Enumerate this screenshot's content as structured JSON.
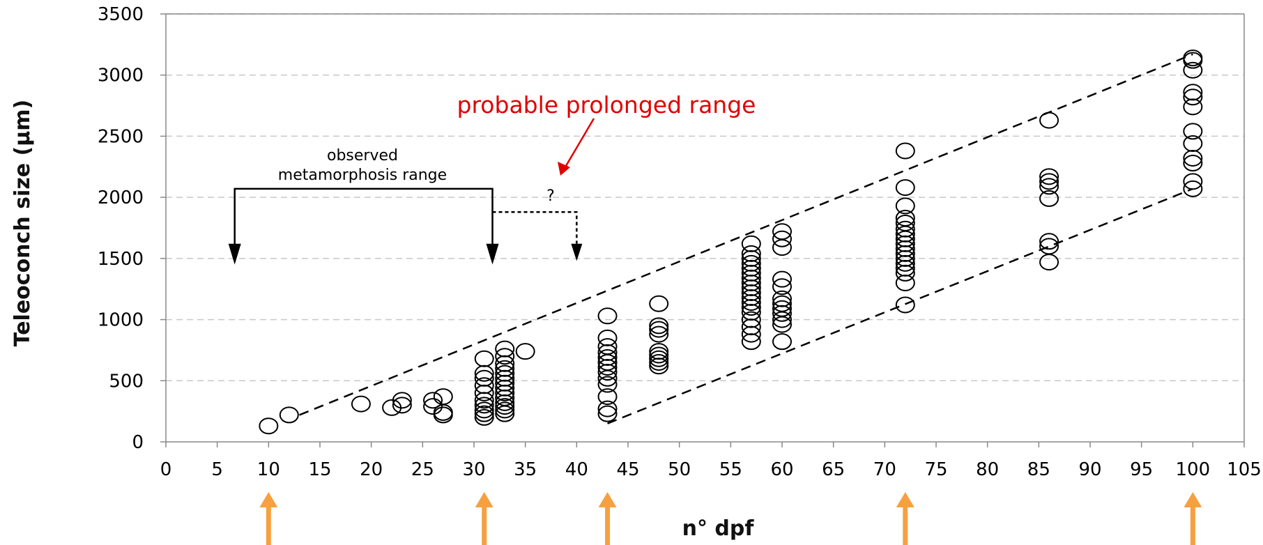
{
  "chart_data": {
    "type": "scatter",
    "title": "",
    "xlabel": "n° dpf",
    "ylabel": "Teleoconch size (μm)",
    "xlim": [
      0,
      105
    ],
    "ylim": [
      0,
      3500
    ],
    "x_ticks": [
      0,
      5,
      10,
      15,
      20,
      25,
      30,
      35,
      40,
      45,
      50,
      55,
      60,
      65,
      70,
      75,
      80,
      85,
      90,
      95,
      100,
      105
    ],
    "y_ticks": [
      0,
      500,
      1000,
      1500,
      2000,
      2500,
      3000,
      3500
    ],
    "grid": "horizontal dashed",
    "marker": "open circle",
    "points": [
      [
        10,
        130
      ],
      [
        12,
        220
      ],
      [
        19,
        310
      ],
      [
        22,
        280
      ],
      [
        23,
        300
      ],
      [
        23,
        340
      ],
      [
        26,
        290
      ],
      [
        26,
        340
      ],
      [
        27,
        370
      ],
      [
        27,
        240
      ],
      [
        27,
        220
      ],
      [
        31,
        680
      ],
      [
        31,
        560
      ],
      [
        31,
        520
      ],
      [
        31,
        460
      ],
      [
        31,
        400
      ],
      [
        31,
        340
      ],
      [
        31,
        300
      ],
      [
        31,
        260
      ],
      [
        31,
        230
      ],
      [
        31,
        200
      ],
      [
        33,
        760
      ],
      [
        33,
        700
      ],
      [
        33,
        640
      ],
      [
        33,
        600
      ],
      [
        33,
        560
      ],
      [
        33,
        520
      ],
      [
        33,
        480
      ],
      [
        33,
        440
      ],
      [
        33,
        400
      ],
      [
        33,
        360
      ],
      [
        33,
        320
      ],
      [
        33,
        290
      ],
      [
        33,
        260
      ],
      [
        33,
        230
      ],
      [
        35,
        740
      ],
      [
        43,
        1030
      ],
      [
        43,
        850
      ],
      [
        43,
        780
      ],
      [
        43,
        730
      ],
      [
        43,
        690
      ],
      [
        43,
        650
      ],
      [
        43,
        610
      ],
      [
        43,
        570
      ],
      [
        43,
        520
      ],
      [
        43,
        470
      ],
      [
        43,
        370
      ],
      [
        43,
        270
      ],
      [
        43,
        230
      ],
      [
        48,
        1130
      ],
      [
        48,
        950
      ],
      [
        48,
        920
      ],
      [
        48,
        880
      ],
      [
        48,
        740
      ],
      [
        48,
        710
      ],
      [
        48,
        680
      ],
      [
        48,
        650
      ],
      [
        48,
        620
      ],
      [
        57,
        1620
      ],
      [
        57,
        1540
      ],
      [
        57,
        1500
      ],
      [
        57,
        1460
      ],
      [
        57,
        1420
      ],
      [
        57,
        1380
      ],
      [
        57,
        1340
      ],
      [
        57,
        1300
      ],
      [
        57,
        1260
      ],
      [
        57,
        1220
      ],
      [
        57,
        1180
      ],
      [
        57,
        1140
      ],
      [
        57,
        1100
      ],
      [
        57,
        1060
      ],
      [
        57,
        1000
      ],
      [
        57,
        940
      ],
      [
        57,
        880
      ],
      [
        57,
        820
      ],
      [
        60,
        1720
      ],
      [
        60,
        1660
      ],
      [
        60,
        1590
      ],
      [
        60,
        1330
      ],
      [
        60,
        1270
      ],
      [
        60,
        1170
      ],
      [
        60,
        1130
      ],
      [
        60,
        1090
      ],
      [
        60,
        1050
      ],
      [
        60,
        1000
      ],
      [
        60,
        960
      ],
      [
        60,
        820
      ],
      [
        72,
        2380
      ],
      [
        72,
        2080
      ],
      [
        72,
        1930
      ],
      [
        72,
        1830
      ],
      [
        72,
        1790
      ],
      [
        72,
        1740
      ],
      [
        72,
        1700
      ],
      [
        72,
        1660
      ],
      [
        72,
        1620
      ],
      [
        72,
        1580
      ],
      [
        72,
        1540
      ],
      [
        72,
        1500
      ],
      [
        72,
        1460
      ],
      [
        72,
        1420
      ],
      [
        72,
        1380
      ],
      [
        72,
        1300
      ],
      [
        72,
        1120
      ],
      [
        86,
        2630
      ],
      [
        86,
        2170
      ],
      [
        86,
        2130
      ],
      [
        86,
        2090
      ],
      [
        86,
        1990
      ],
      [
        86,
        1640
      ],
      [
        86,
        1600
      ],
      [
        86,
        1470
      ],
      [
        100,
        3140
      ],
      [
        100,
        3120
      ],
      [
        100,
        3040
      ],
      [
        100,
        2860
      ],
      [
        100,
        2820
      ],
      [
        100,
        2740
      ],
      [
        100,
        2540
      ],
      [
        100,
        2440
      ],
      [
        100,
        2320
      ],
      [
        100,
        2280
      ],
      [
        100,
        2130
      ],
      [
        100,
        2070
      ]
    ],
    "trend_lines": [
      {
        "from": [
          13,
          220
        ],
        "to": [
          100,
          3170
        ]
      },
      {
        "from": [
          43,
          150
        ],
        "to": [
          100,
          2070
        ]
      }
    ],
    "annotations": {
      "observed_range_text": [
        "observed",
        "metamorphosis range"
      ],
      "observed_range": [
        6.7,
        31.8
      ],
      "question_mark": "?",
      "probable_range_end": 40,
      "red_label": "probable prolonged range"
    },
    "highlight_arrows_x": [
      10,
      31,
      43,
      72,
      100
    ],
    "colors": {
      "arrow": "#f7a040",
      "red_text": "#e00000",
      "grid": "#c8c8c8"
    }
  }
}
